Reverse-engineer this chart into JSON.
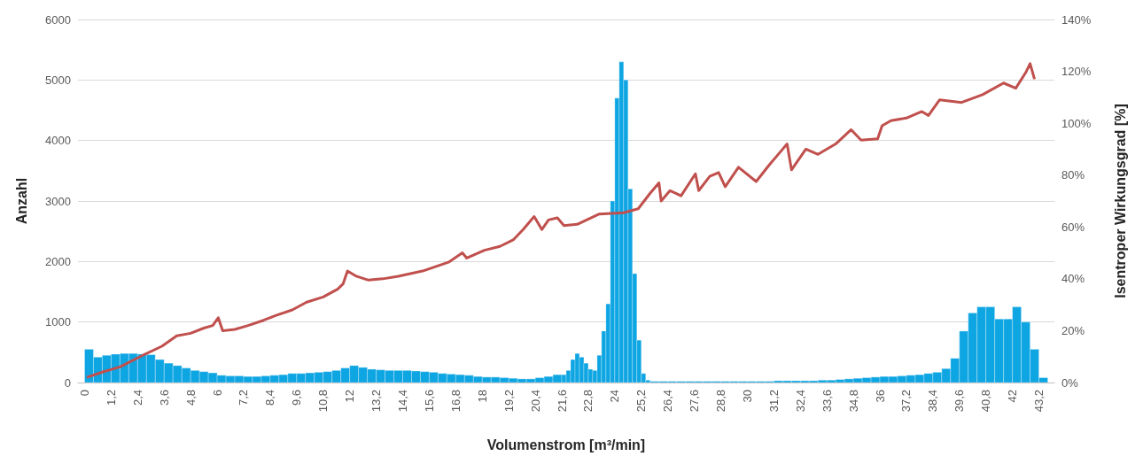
{
  "chart_data": {
    "type": "histogram",
    "xlabel": "Volumenstrom [m³/min]",
    "ylabel": "Anzahl",
    "y2label": "Isentroper Wirkungsgrad [%]",
    "xlim": [
      -0.3,
      43.9
    ],
    "xticks": [
      0,
      {
        "value": 1.2,
        "label": "1,2"
      },
      {
        "value": 2.4,
        "label": "2,4"
      },
      {
        "value": 3.6,
        "label": "3,6"
      },
      {
        "value": 4.8,
        "label": "4,8"
      },
      6,
      {
        "value": 7.2,
        "label": "7,2"
      },
      {
        "value": 8.4,
        "label": "8,4"
      },
      {
        "value": 9.6,
        "label": "9,6"
      },
      {
        "value": 10.8,
        "label": "10,8"
      },
      12,
      {
        "value": 13.2,
        "label": "13,2"
      },
      {
        "value": 14.4,
        "label": "14,4"
      },
      {
        "value": 15.6,
        "label": "15,6"
      },
      {
        "value": 16.8,
        "label": "16,8"
      },
      18,
      {
        "value": 19.2,
        "label": "19,2"
      },
      {
        "value": 20.4,
        "label": "20,4"
      },
      {
        "value": 21.6,
        "label": "21,6"
      },
      {
        "value": 22.8,
        "label": "22,8"
      },
      24,
      {
        "value": 25.2,
        "label": "25,2"
      },
      {
        "value": 26.4,
        "label": "26,4"
      },
      {
        "value": 27.6,
        "label": "27,6"
      },
      {
        "value": 28.8,
        "label": "28,8"
      },
      30,
      {
        "value": 31.2,
        "label": "31,2"
      },
      {
        "value": 32.4,
        "label": "32,4"
      },
      {
        "value": 33.6,
        "label": "33,6"
      },
      {
        "value": 34.8,
        "label": "34,8"
      },
      36,
      {
        "value": 37.2,
        "label": "37,2"
      },
      {
        "value": 38.4,
        "label": "38,4"
      },
      {
        "value": 39.6,
        "label": "39,6"
      },
      {
        "value": 40.8,
        "label": "40,8"
      },
      42,
      {
        "value": 43.2,
        "label": "43,2"
      }
    ],
    "ylim": [
      0,
      6000
    ],
    "yticks": [
      0,
      1000,
      2000,
      3000,
      4000,
      5000,
      6000
    ],
    "y2lim": [
      0,
      140
    ],
    "y2ticks": [
      {
        "value": 0,
        "label": "0%"
      },
      {
        "value": 20,
        "label": "20%"
      },
      {
        "value": 40,
        "label": "40%"
      },
      {
        "value": 60,
        "label": "60%"
      },
      {
        "value": 80,
        "label": "80%"
      },
      {
        "value": 100,
        "label": "100%"
      },
      {
        "value": 120,
        "label": "120%"
      },
      {
        "value": 140,
        "label": "140%"
      }
    ],
    "grid": "y",
    "marker": "none",
    "series": [
      {
        "type": "histogram",
        "color": "#0ea5e3",
        "bins": [
          0,
          0.4,
          0.8,
          1.2,
          1.6,
          2,
          2.4,
          2.8,
          3.2,
          3.6,
          4,
          4.4,
          4.8,
          5.2,
          5.6,
          6,
          6.4,
          6.8,
          7.2,
          7.6,
          8,
          8.4,
          8.8,
          9.2,
          9.6,
          10,
          10.4,
          10.8,
          11.2,
          11.6,
          12,
          12.4,
          12.8,
          13.2,
          13.6,
          14,
          14.4,
          14.8,
          15.2,
          15.6,
          16,
          16.4,
          16.8,
          17.2,
          17.6,
          18,
          18.4,
          18.8,
          19.2,
          19.6,
          20,
          20.4,
          20.8,
          21.2,
          21.6,
          21.8,
          22,
          22.2,
          22.4,
          22.6,
          22.8,
          23,
          23.2,
          23.4,
          23.6,
          23.8,
          24,
          24.2,
          24.4,
          24.6,
          24.8,
          25,
          25.2,
          25.4,
          25.6,
          26,
          26.4,
          26.8,
          27.2,
          27.6,
          28,
          28.4,
          28.8,
          29.2,
          29.6,
          30,
          30.4,
          30.8,
          31.2,
          31.6,
          32,
          32.4,
          32.8,
          33.2,
          33.6,
          34,
          34.4,
          34.8,
          35.2,
          35.6,
          36,
          36.4,
          36.8,
          37.2,
          37.6,
          38,
          38.4,
          38.8,
          39.2,
          39.6,
          40,
          40.4,
          40.8,
          41.2,
          41.6,
          42,
          42.4,
          42.8,
          43.2,
          43.6
        ],
        "values": [
          550,
          420,
          450,
          470,
          480,
          480,
          470,
          460,
          380,
          320,
          280,
          240,
          200,
          180,
          160,
          120,
          110,
          110,
          100,
          100,
          110,
          120,
          130,
          150,
          150,
          160,
          170,
          180,
          200,
          240,
          280,
          250,
          220,
          210,
          200,
          200,
          200,
          190,
          180,
          170,
          150,
          140,
          130,
          120,
          100,
          90,
          90,
          80,
          70,
          60,
          60,
          80,
          100,
          130,
          130,
          200,
          380,
          480,
          420,
          320,
          220,
          200,
          450,
          850,
          1300,
          3000,
          4700,
          5300,
          5000,
          3200,
          1800,
          700,
          150,
          40,
          20,
          20,
          20,
          20,
          20,
          20,
          20,
          20,
          20,
          20,
          20,
          20,
          20,
          20,
          30,
          30,
          30,
          30,
          30,
          40,
          40,
          50,
          60,
          70,
          80,
          90,
          100,
          100,
          110,
          120,
          130,
          150,
          170,
          230,
          400,
          850,
          1150,
          1250,
          1250,
          1050,
          1050,
          1250,
          1000,
          550,
          80
        ]
      },
      {
        "type": "line",
        "axis": "y2",
        "color": "#c0504d",
        "x": [
          0.1,
          0.8,
          1.6,
          2.75,
          3.5,
          4.17,
          4.8,
          5.4,
          5.8,
          6.05,
          6.25,
          6.8,
          7.4,
          8.1,
          8.7,
          9.4,
          10.05,
          10.8,
          11.45,
          11.7,
          11.9,
          12.3,
          12.85,
          13.5,
          14.2,
          15.3,
          16.5,
          17.1,
          17.3,
          18.1,
          18.8,
          19.4,
          19.85,
          20.35,
          20.7,
          21,
          21.4,
          21.7,
          22.3,
          23.3,
          24.4,
          25.06,
          25.6,
          26,
          26.1,
          26.5,
          27,
          27.65,
          27.8,
          28.3,
          28.7,
          29,
          29.6,
          30.4,
          31,
          31.5,
          31.8,
          32,
          32.65,
          33.2,
          34,
          34.7,
          35.15,
          35.9,
          36.1,
          36.5,
          37.2,
          37.9,
          38.2,
          38.7,
          39.7,
          40.65,
          41.6,
          42.15,
          42.6,
          42.8,
          43
        ],
        "values": [
          2,
          4,
          6,
          11,
          14,
          18,
          19,
          21,
          22,
          25,
          20,
          20.5,
          22,
          24,
          26,
          28,
          31,
          33,
          36,
          38,
          43,
          41,
          39.5,
          40,
          41,
          43,
          46.5,
          50,
          48,
          51,
          52.5,
          55,
          59,
          64,
          59,
          62.7,
          63.5,
          60.5,
          61,
          65,
          65.5,
          67,
          73,
          77,
          70,
          74,
          72,
          80.5,
          74,
          79.5,
          81,
          75.5,
          83,
          77.5,
          84,
          89,
          92,
          82,
          90,
          88,
          92,
          97.5,
          93.5,
          94,
          99,
          101,
          102,
          104.5,
          103,
          109,
          108,
          111,
          115.5,
          113.5,
          119.5,
          123,
          117
        ]
      }
    ]
  }
}
